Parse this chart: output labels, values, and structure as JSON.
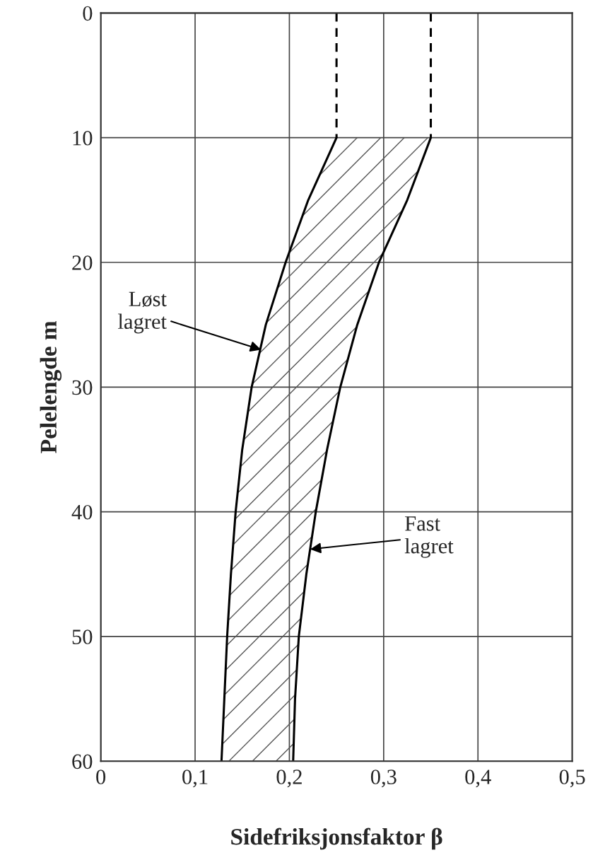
{
  "chart_data": {
    "type": "line",
    "orientation": "horizontal",
    "xlabel": "Sidefriksjonsfaktor β",
    "ylabel": "Pelelengde m",
    "series": [
      {
        "color": "#000000",
        "line_style": "solid",
        "x": [
          10,
          15,
          20,
          25,
          30,
          35,
          40,
          45,
          50,
          55,
          60
        ],
        "values": [
          0.25,
          0.22,
          0.196,
          0.175,
          0.16,
          0.15,
          0.143,
          0.138,
          0.134,
          0.131,
          0.128
        ]
      },
      {
        "color": "#000000",
        "line_style": "solid",
        "x": [
          10,
          15,
          20,
          25,
          30,
          35,
          40,
          45,
          50,
          55,
          60
        ],
        "values": [
          0.35,
          0.325,
          0.295,
          0.272,
          0.254,
          0.24,
          0.228,
          0.218,
          0.21,
          0.206,
          0.204
        ],
        "lower": [
          0.25,
          0.22,
          0.196,
          0.175,
          0.16,
          0.15,
          0.143,
          0.138,
          0.134,
          0.131,
          0.128
        ],
        "upper": [
          0.35,
          0.325,
          0.295,
          0.272,
          0.254,
          0.24,
          0.228,
          0.218,
          0.21,
          0.206,
          0.204
        ]
      },
      {
        "color": "#000000",
        "line_style": "dashed",
        "x": [
          0,
          10
        ],
        "values": [
          0.25,
          0.25
        ]
      },
      {
        "color": "#000000",
        "line_style": "dashed",
        "x": [
          0,
          10
        ],
        "values": [
          0.35,
          0.35
        ]
      }
    ],
    "annotations": [
      {
        "text": "Løst\nlagret",
        "x": 0.17,
        "y": 27
      },
      {
        "text": "Fast\nlagret",
        "x": 0.222,
        "y": 43
      }
    ],
    "xlim": [
      0,
      0.5
    ],
    "ylim": [
      60,
      0
    ],
    "xticks": [
      0,
      {
        "value": 0.1,
        "label": "0,1"
      },
      {
        "value": 0.2,
        "label": "0,2"
      },
      {
        "value": 0.3,
        "label": "0,3"
      },
      {
        "value": 0.4,
        "label": "0,4"
      },
      {
        "value": 0.5,
        "label": "0,5"
      }
    ],
    "yticks": [
      0,
      10,
      20,
      30,
      40,
      50,
      60
    ],
    "grid": true,
    "marker": "none"
  }
}
